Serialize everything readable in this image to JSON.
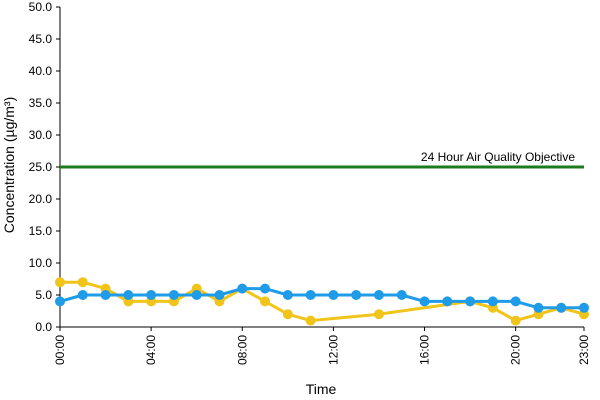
{
  "chart_data": {
    "type": "line",
    "xlabel": "Time",
    "ylabel": "Concentration (µg/m³)",
    "ylim": [
      0,
      50
    ],
    "y_ticks": [
      "0.0",
      "5.0",
      "10.0",
      "15.0",
      "20.0",
      "25.0",
      "30.0",
      "35.0",
      "40.0",
      "45.0",
      "50.0"
    ],
    "x_ticks": [
      "00:00",
      "04:00",
      "08:00",
      "12:00",
      "16:00",
      "20:00",
      "23:00"
    ],
    "x_tick_hours": [
      0,
      4,
      8,
      12,
      16,
      20,
      23
    ],
    "xlim_hours": [
      0,
      23
    ],
    "grid": false,
    "reference_line": {
      "label": "24 Hour Air Quality Objective",
      "value": 25,
      "color": "#1e7a1e"
    },
    "series": [
      {
        "color": "#f0c419",
        "x_hours": [
          0,
          1,
          2,
          3,
          4,
          5,
          6,
          7,
          8,
          9,
          10,
          11,
          14,
          18,
          19,
          20,
          21,
          22,
          23
        ],
        "values": [
          7,
          7,
          6,
          4,
          4,
          4,
          6,
          4,
          6,
          4,
          2,
          1,
          2,
          4,
          3,
          1,
          2,
          3,
          2
        ]
      },
      {
        "color": "#1f9be8",
        "x_hours": [
          0,
          1,
          2,
          3,
          4,
          5,
          6,
          7,
          8,
          9,
          10,
          11,
          12,
          13,
          14,
          15,
          16,
          17,
          18,
          19,
          20,
          21,
          22,
          23
        ],
        "values": [
          4,
          5,
          5,
          5,
          5,
          5,
          5,
          5,
          6,
          6,
          5,
          5,
          5,
          5,
          5,
          5,
          4,
          4,
          4,
          4,
          4,
          3,
          3,
          3
        ]
      }
    ]
  }
}
